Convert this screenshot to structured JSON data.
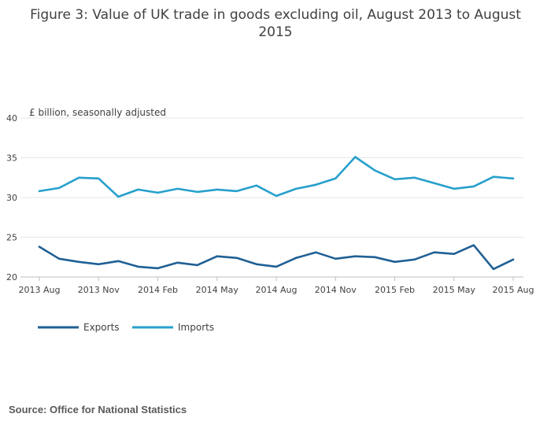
{
  "title_line1": "Figure 3: Value of UK trade in goods excluding oil, August 2013 to August",
  "title_line2": "2015",
  "source": "Source: Office for National Statistics",
  "colors": {
    "exports": "#206095",
    "imports": "#27a0cc",
    "grid": "#e6e6e6",
    "text": "#414042"
  },
  "chart_data": {
    "type": "line",
    "title": "Figure 3: Value of UK trade in goods excluding oil, August 2013 to August 2015",
    "ylabel": "£ billion, seasonally adjusted",
    "xlabel": "",
    "ylim": [
      20,
      40
    ],
    "yticks": [
      20,
      25,
      30,
      35,
      40
    ],
    "x": [
      "2013 Aug",
      "2013 Sep",
      "2013 Oct",
      "2013 Nov",
      "2013 Dec",
      "2014 Jan",
      "2014 Feb",
      "2014 Mar",
      "2014 Apr",
      "2014 May",
      "2014 Jun",
      "2014 Jul",
      "2014 Aug",
      "2014 Sep",
      "2014 Oct",
      "2014 Nov",
      "2014 Dec",
      "2015 Jan",
      "2015 Feb",
      "2015 Mar",
      "2015 Apr",
      "2015 May",
      "2015 Jun",
      "2015 Jul",
      "2015 Aug"
    ],
    "xtick_labels": [
      "2013 Aug",
      "2013 Nov",
      "2014 Feb",
      "2014 May",
      "2014 Aug",
      "2014 Nov",
      "2015 Feb",
      "2015 May",
      "2015 Aug"
    ],
    "xtick_every": 3,
    "grid": true,
    "legend_position": "bottom-left",
    "series": [
      {
        "name": "Exports",
        "values": [
          23.8,
          22.3,
          21.9,
          21.6,
          22.0,
          21.3,
          21.1,
          21.8,
          21.5,
          22.6,
          22.4,
          21.6,
          21.3,
          22.4,
          23.1,
          22.3,
          22.6,
          22.5,
          21.9,
          22.2,
          23.1,
          22.9,
          24.0,
          21.0,
          22.2
        ]
      },
      {
        "name": "Imports",
        "values": [
          30.8,
          31.2,
          32.5,
          32.4,
          30.1,
          31.0,
          30.6,
          31.1,
          30.7,
          31.0,
          30.8,
          31.5,
          30.2,
          31.1,
          31.6,
          32.4,
          35.1,
          33.4,
          32.3,
          32.5,
          31.8,
          31.1,
          31.4,
          32.6,
          32.4
        ]
      }
    ]
  }
}
